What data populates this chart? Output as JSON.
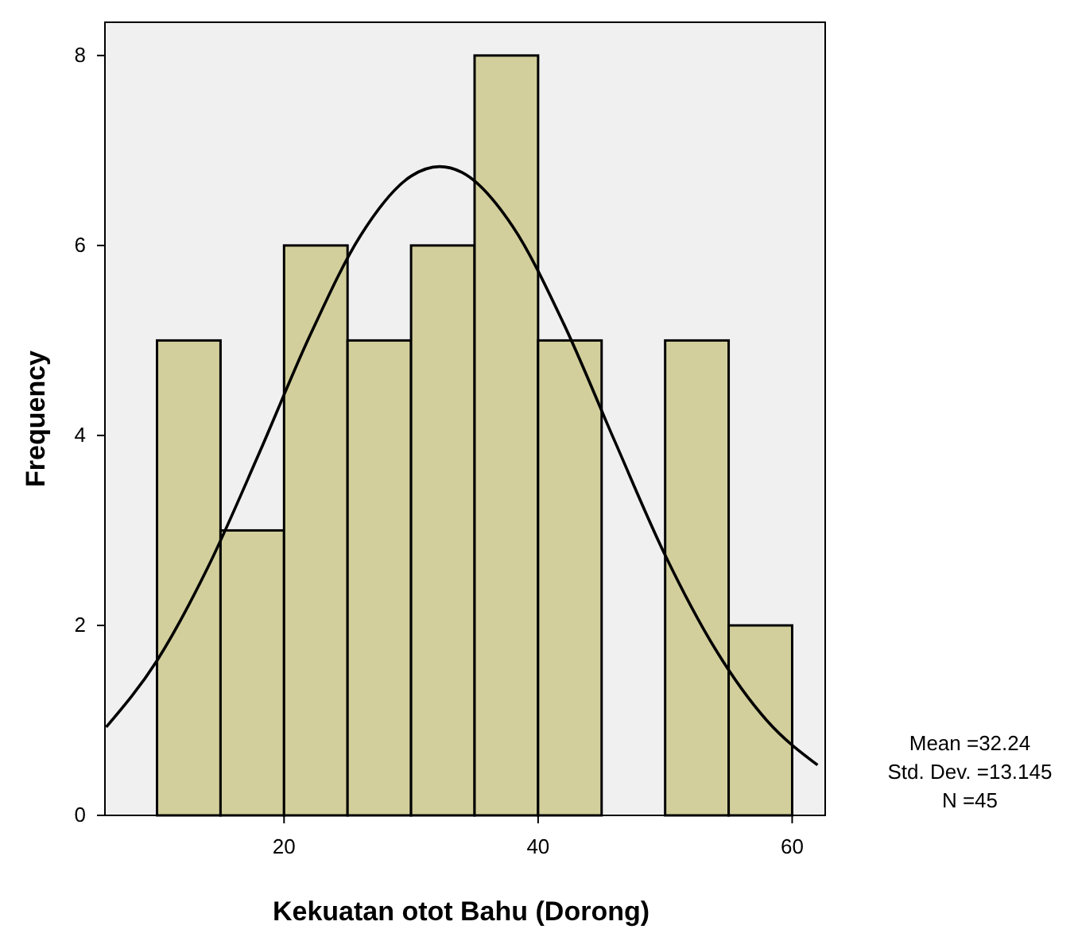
{
  "chart_data": {
    "type": "histogram",
    "xlabel": "Kekuatan otot Bahu (Dorong)",
    "ylabel": "Frequency",
    "bins": [
      10,
      15,
      20,
      25,
      30,
      35,
      40,
      45,
      50,
      55,
      60
    ],
    "values": [
      5,
      3,
      6,
      5,
      6,
      8,
      5,
      0,
      5,
      2
    ],
    "color": "#d3cf9c",
    "series": [
      {
        "type": "line",
        "color": "#000000",
        "x": [
          6,
          10,
          14,
          18,
          22,
          26,
          30,
          32.24,
          34,
          38,
          42,
          46,
          50,
          54,
          58,
          62
        ],
        "values": [
          0.93,
          1.63,
          2.61,
          3.8,
          5.04,
          6.1,
          6.73,
          6.83,
          6.77,
          6.2,
          5.18,
          3.95,
          2.74,
          1.74,
          1.0,
          0.53
        ]
      }
    ],
    "xlim": [
      5.9,
      62.6
    ],
    "ylim": [
      0,
      8.35
    ],
    "xticks": [
      20,
      40,
      60
    ],
    "yticks": [
      0,
      2,
      4,
      6,
      8
    ],
    "grid": false,
    "annotations": [
      "Mean =32.24",
      "Std. Dev. =13.145",
      "N =45"
    ]
  }
}
